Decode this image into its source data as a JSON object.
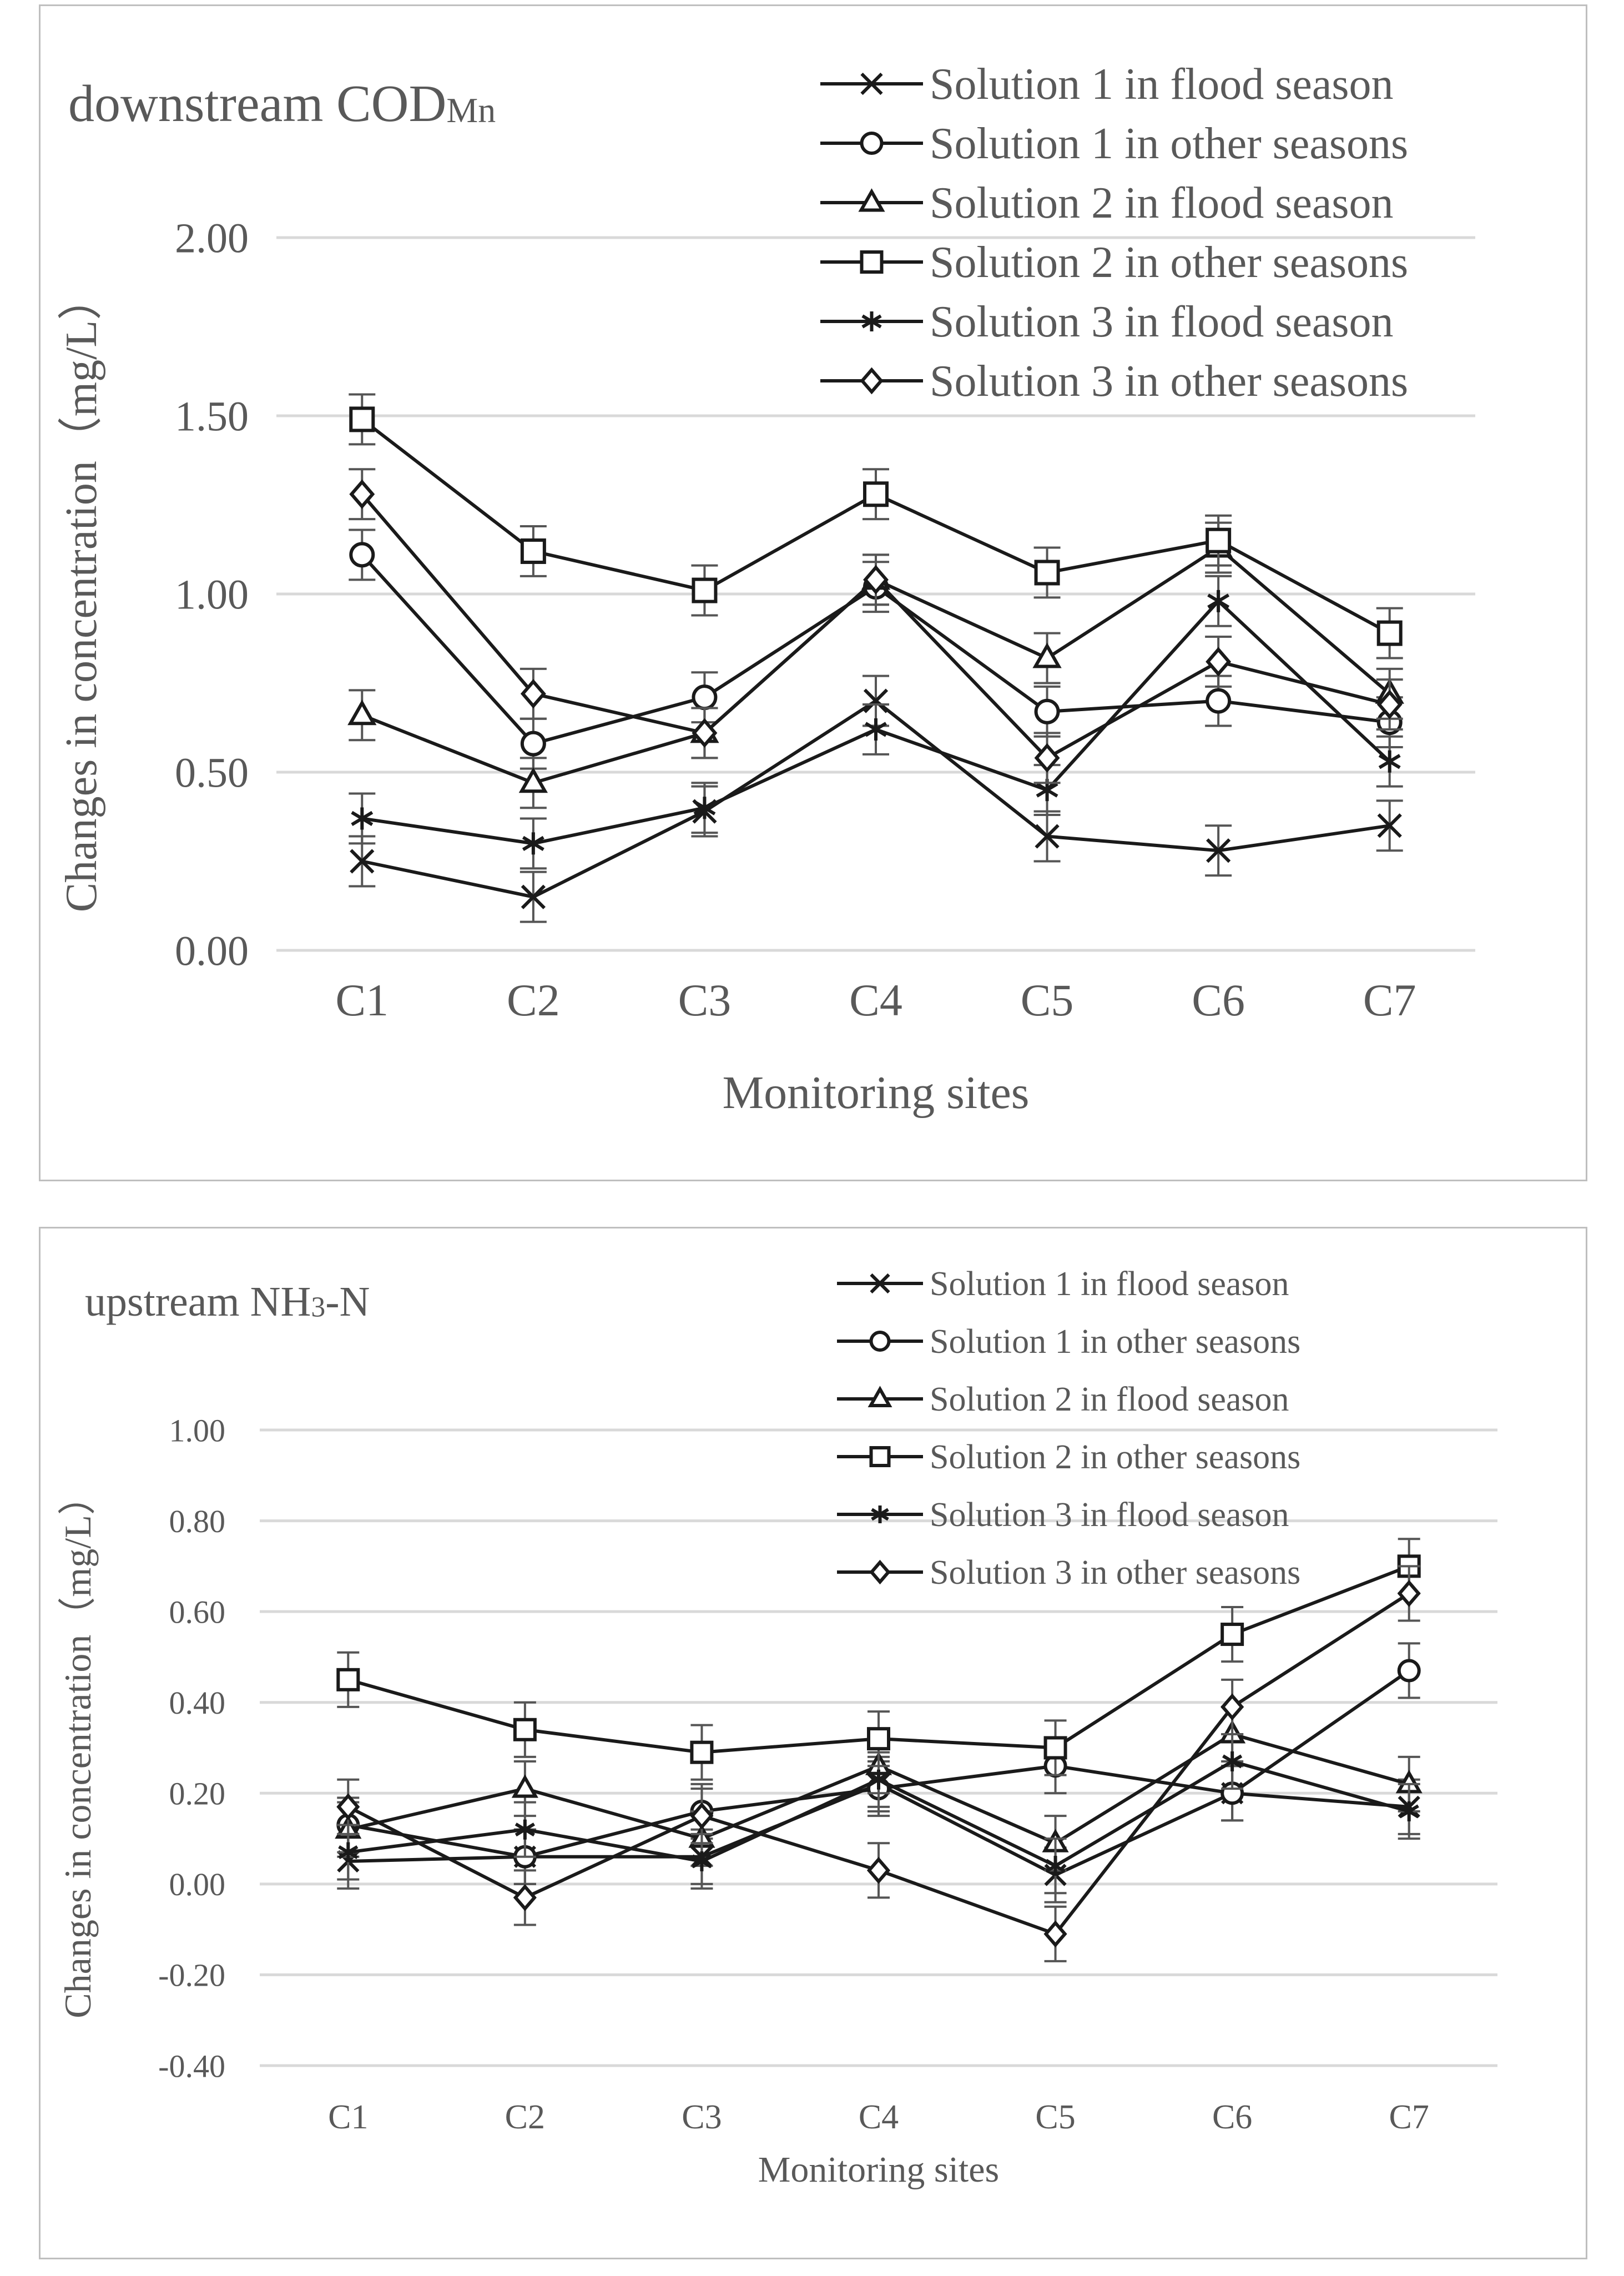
{
  "chart_data": [
    {
      "type": "line",
      "title": "downstream  COD",
      "title_sub": "Mn",
      "xlabel": "Monitoring sites",
      "ylabel": "Changes in concentration（mg/L）",
      "ylim": [
        0,
        2
      ],
      "ytick_values": [
        0,
        0.5,
        1.0,
        1.5,
        2.0
      ],
      "yticks": [
        "0.00",
        "0.50",
        "1.00",
        "1.50",
        "2.00"
      ],
      "categories": [
        "C1",
        "C2",
        "C3",
        "C4",
        "C5",
        "C6",
        "C7"
      ],
      "error_bar": 0.07,
      "grid": true,
      "legend_position": "top-right",
      "series": [
        {
          "name": "Solution 1 in flood season",
          "marker": "x",
          "values": [
            0.25,
            0.15,
            0.39,
            0.7,
            0.32,
            0.28,
            0.35
          ]
        },
        {
          "name": "Solution 1 in other seasons",
          "marker": "circle",
          "values": [
            1.11,
            0.58,
            0.71,
            1.02,
            0.67,
            0.7,
            0.64
          ]
        },
        {
          "name": "Solution 2 in flood season",
          "marker": "triangle",
          "values": [
            0.66,
            0.47,
            0.61,
            1.04,
            0.82,
            1.13,
            0.72
          ]
        },
        {
          "name": "Solution 2 in other seasons",
          "marker": "square",
          "values": [
            1.49,
            1.12,
            1.01,
            1.28,
            1.06,
            1.15,
            0.89
          ]
        },
        {
          "name": "Solution 3 in flood season",
          "marker": "star",
          "values": [
            0.37,
            0.3,
            0.4,
            0.62,
            0.45,
            0.98,
            0.53
          ]
        },
        {
          "name": "Solution 3 in other seasons",
          "marker": "diamond",
          "values": [
            1.28,
            0.72,
            0.61,
            1.04,
            0.54,
            0.81,
            0.69
          ]
        }
      ]
    },
    {
      "type": "line",
      "title": "upstream  NH",
      "title_sub": "3",
      "title_suffix": "-N",
      "xlabel": "Monitoring sites",
      "ylabel": "Changes in concentration（mg/L）",
      "ylim": [
        -0.4,
        1.0
      ],
      "ytick_values": [
        -0.4,
        -0.2,
        0,
        0.2,
        0.4,
        0.6,
        0.8,
        1.0
      ],
      "yticks": [
        "-0.40",
        "-0.20",
        "0.00",
        "0.20",
        "0.40",
        "0.60",
        "0.80",
        "1.00"
      ],
      "categories": [
        "C1",
        "C2",
        "C3",
        "C4",
        "C5",
        "C6",
        "C7"
      ],
      "error_bar": 0.06,
      "grid": true,
      "legend_position": "top-right",
      "series": [
        {
          "name": "Solution 1 in flood season",
          "marker": "x",
          "values": [
            0.05,
            0.06,
            0.06,
            0.22,
            0.02,
            0.2,
            0.17
          ]
        },
        {
          "name": "Solution 1 in other seasons",
          "marker": "circle",
          "values": [
            0.13,
            0.06,
            0.16,
            0.21,
            0.26,
            0.2,
            0.47
          ]
        },
        {
          "name": "Solution 2 in flood season",
          "marker": "triangle",
          "values": [
            0.12,
            0.21,
            0.1,
            0.26,
            0.09,
            0.33,
            0.22
          ]
        },
        {
          "name": "Solution 2 in other seasons",
          "marker": "square",
          "values": [
            0.45,
            0.34,
            0.29,
            0.32,
            0.3,
            0.55,
            0.7
          ]
        },
        {
          "name": "Solution 3 in flood season",
          "marker": "star",
          "values": [
            0.07,
            0.12,
            0.05,
            0.23,
            0.04,
            0.27,
            0.16
          ]
        },
        {
          "name": "Solution 3 in other seasons",
          "marker": "diamond",
          "values": [
            0.17,
            -0.03,
            0.15,
            0.03,
            -0.11,
            0.39,
            0.64
          ]
        }
      ]
    }
  ]
}
